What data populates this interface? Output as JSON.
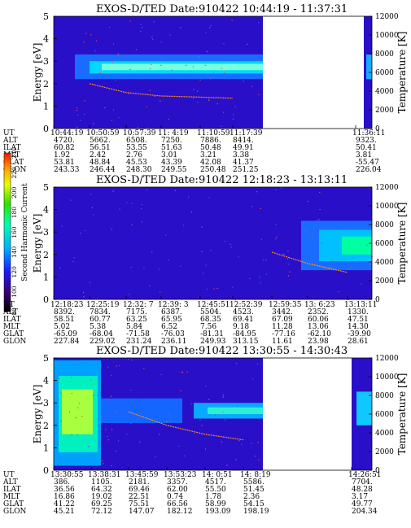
{
  "chart_data": [
    {
      "type": "heatmap",
      "title": "EXOS-D/TED   Date:910422   10:44:19 - 11:37:31",
      "ylabel": "Energy [eV]",
      "ylim": [
        0,
        5
      ],
      "yticks": [
        "0",
        "1",
        "2",
        "3",
        "4",
        "5"
      ],
      "right_axis": {
        "label": "Temperature [K]",
        "ticks": [
          "0",
          "2000",
          "4000",
          "6000",
          "8000",
          "10000",
          "12000"
        ]
      },
      "orbit_rows": [
        "UT",
        "ALT",
        "ILAT",
        "MLT",
        "GLAT",
        "GLON"
      ],
      "orbit_columns": [
        [
          "10:44:19",
          "4720.",
          "60.82",
          "1.92",
          "53.81",
          "243.33"
        ],
        [
          "10:50:59",
          "5662.",
          "56.51",
          "2.42",
          "48.84",
          "246.44"
        ],
        [
          "10:57:39",
          "6508.",
          "53.55",
          "2.76",
          "45.53",
          "248.30"
        ],
        [
          "11: 4:19",
          "7250.",
          "51.63",
          "3.01",
          "43.39",
          "249.55"
        ],
        [
          "11:10:59",
          "7886.",
          "50.48",
          "3.21",
          "42.08",
          "250.48"
        ],
        [
          "11:17:39",
          "8414.",
          "49.91",
          "3.38",
          "41.37",
          "251.25"
        ],
        [
          "11:36:11",
          "9323.",
          "50.41",
          "3.81",
          "-55.47",
          "226.04"
        ]
      ],
      "series": [
        {
          "name": "",
          "x": [
            "10:50:59",
            "10:57:39",
            "11: 4:19",
            "11:10:59",
            "11:17:39"
          ],
          "values": [
            2.0,
            1.6,
            1.45,
            1.4,
            1.35
          ]
        }
      ]
    },
    {
      "type": "heatmap",
      "title": "EXOS-D/TED   Date:910422   12:18:23 - 13:13:11",
      "ylabel": "Energy [eV]",
      "ylim": [
        0,
        5
      ],
      "yticks": [
        "0",
        "1",
        "2",
        "3",
        "4",
        "5"
      ],
      "right_axis": {
        "label": "Temperature [K]",
        "ticks": [
          "0",
          "2000",
          "4000",
          "6000",
          "8000",
          "10000",
          "12000"
        ]
      },
      "colorbar": {
        "label": "Second Harmonic Current",
        "ticks": [
          "80",
          "100",
          "120",
          "140",
          "160",
          "180",
          "200",
          "220",
          "240"
        ]
      },
      "orbit_rows": [
        "UT",
        "ALT",
        "ILAT",
        "MLT",
        "GLAT",
        "GLON"
      ],
      "orbit_columns": [
        [
          "12:18:23",
          "8392.",
          "58.51",
          "5.02",
          "-65.09",
          "227.84"
        ],
        [
          "12:25:19",
          "7834.",
          "60.77",
          "5.38",
          "-68.04",
          "229.02"
        ],
        [
          "12:32: 7",
          "7175.",
          "63.25",
          "5.84",
          "-71.58",
          "231.24"
        ],
        [
          "12:39: 3",
          "6387.",
          "65.95",
          "6.52",
          "-76.03",
          "236.11"
        ],
        [
          "12:45:51",
          "5504.",
          "68.35",
          "7.56",
          "-81.31",
          "249.93"
        ],
        [
          "12:52:39",
          "4523.",
          "69.41",
          "9.18",
          "-84.95",
          "313.15"
        ],
        [
          "12:59:35",
          "3442.",
          "67.09",
          "11.28",
          "-77.16",
          "11.61"
        ],
        [
          "13: 6:23",
          "2352.",
          "60.06",
          "13.06",
          "-62.10",
          "23.98"
        ],
        [
          "13:13:11",
          "1330.",
          "47.51",
          "14.30",
          "-39.90",
          "28.61"
        ]
      ],
      "series": [
        {
          "name": "",
          "x": [
            "12:59:35",
            "13: 6:23",
            "13:13:11"
          ],
          "values": [
            2.1,
            1.6,
            1.2
          ]
        }
      ]
    },
    {
      "type": "heatmap",
      "title": "EXOS-D/TED   Date:910422   13:30:55 - 14:30:43",
      "ylabel": "Energy [eV]",
      "ylim": [
        0,
        5
      ],
      "yticks": [
        "0",
        "1",
        "2",
        "3",
        "4",
        "5"
      ],
      "right_axis": {
        "label": "Temperature [K]",
        "ticks": [
          "0",
          "2000",
          "4000",
          "6000",
          "8000",
          "10000",
          "12000"
        ]
      },
      "orbit_rows": [
        "UT",
        "ALT",
        "ILAT",
        "MLT",
        "GLAT",
        "GLON"
      ],
      "orbit_columns": [
        [
          "13:30:55",
          "386.",
          "36.56",
          "16.86",
          "41.22",
          "45.21"
        ],
        [
          "13:38:31",
          "1105.",
          "64.32",
          "19.02",
          "69.25",
          "72.12"
        ],
        [
          "13:45:59",
          "2181.",
          "69.46",
          "22.51",
          "75.51",
          "147.07"
        ],
        [
          "13:53:23",
          "3357.",
          "62.00",
          "0.74",
          "66.56",
          "182.12"
        ],
        [
          "14: 0:51",
          "4517.",
          "55.50",
          "1.78",
          "58.99",
          "193.09"
        ],
        [
          "14: 8:19",
          "5586.",
          "51.45",
          "2.36",
          "54.15",
          "198.19"
        ],
        [
          "14:26:51",
          "7704.",
          "48.28",
          "3.17",
          "49.77",
          "204.34"
        ]
      ],
      "series": [
        {
          "name": "",
          "x": [
            "13:45:59",
            "13:53:23",
            "14: 0:51",
            "14: 8:19"
          ],
          "values": [
            2.6,
            2.0,
            1.6,
            1.35
          ]
        }
      ]
    }
  ]
}
